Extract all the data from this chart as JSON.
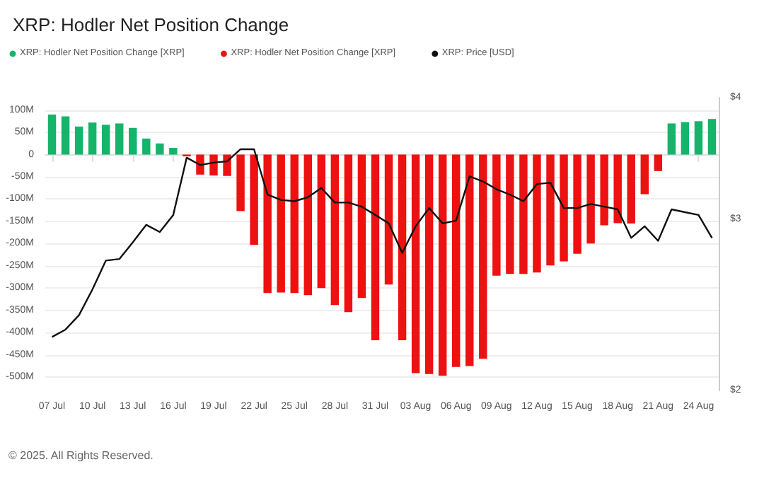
{
  "chart_data": {
    "type": "bar",
    "title": "XRP: Hodler Net Position Change",
    "categories": [
      "07 Jul",
      null,
      null,
      "10 Jul",
      null,
      null,
      "13 Jul",
      null,
      null,
      "16 Jul",
      null,
      null,
      "19 Jul",
      null,
      null,
      "22 Jul",
      null,
      null,
      "25 Jul",
      null,
      null,
      "28 Jul",
      null,
      null,
      "31 Jul",
      null,
      null,
      "03 Aug",
      null,
      null,
      "06 Aug",
      null,
      null,
      "09 Aug",
      null,
      null,
      "12 Aug",
      null,
      null,
      "15 Aug",
      null,
      null,
      "18 Aug",
      null,
      null,
      "21 Aug",
      null,
      null,
      "24 Aug",
      null
    ],
    "series": [
      {
        "name": "XRP: Hodler Net Position Change [XRP]",
        "color": "#16b36a",
        "values": [
          90,
          86,
          63,
          72,
          67,
          70,
          60,
          36,
          25,
          15,
          null,
          null,
          null,
          null,
          null,
          null,
          null,
          null,
          null,
          null,
          null,
          null,
          null,
          null,
          null,
          null,
          null,
          null,
          null,
          null,
          null,
          null,
          null,
          null,
          null,
          null,
          null,
          null,
          null,
          null,
          null,
          null,
          null,
          null,
          null,
          null,
          70,
          73,
          75,
          80
        ]
      },
      {
        "name": "XRP: Hodler Net Position Change [XRP]",
        "color": "#ee1111",
        "values": [
          null,
          null,
          null,
          null,
          null,
          null,
          null,
          null,
          null,
          null,
          -4,
          -45,
          -47,
          -48,
          -127,
          -203,
          -311,
          -310,
          -311,
          -316,
          -300,
          -338,
          -354,
          -322,
          -417,
          -292,
          -417,
          -491,
          -493,
          -497,
          -477,
          -475,
          -459,
          -272,
          -268,
          -268,
          -265,
          -249,
          -240,
          -223,
          -200,
          -159,
          -154,
          -155,
          -89,
          -37,
          null,
          null,
          null,
          null
        ]
      },
      {
        "name": "XRP: Price [USD]",
        "type": "line",
        "axis": "y2",
        "color": "#111111",
        "values": [
          2.27,
          2.31,
          2.39,
          2.54,
          2.72,
          2.73,
          2.84,
          2.96,
          2.91,
          3.03,
          3.47,
          3.41,
          3.43,
          3.44,
          3.54,
          3.54,
          3.18,
          3.14,
          3.13,
          3.16,
          3.23,
          3.12,
          3.12,
          3.09,
          3.03,
          2.97,
          2.77,
          2.95,
          3.08,
          2.97,
          2.99,
          3.32,
          3.28,
          3.22,
          3.18,
          3.13,
          3.26,
          3.27,
          3.08,
          3.08,
          3.11,
          3.09,
          3.07,
          2.87,
          2.95,
          2.85,
          3.07,
          3.05,
          3.03,
          2.87
        ]
      }
    ],
    "ylim": [
      -530,
      128
    ],
    "yticks": [
      {
        "value": 100,
        "label": "100M"
      },
      {
        "value": 50,
        "label": "50M"
      },
      0,
      {
        "value": -50,
        "label": "-50M"
      },
      {
        "value": -100,
        "label": "-100M"
      },
      {
        "value": -150,
        "label": "-150M"
      },
      {
        "value": -200,
        "label": "-200M"
      },
      {
        "value": -250,
        "label": "-250M"
      },
      {
        "value": -300,
        "label": "-300M"
      },
      {
        "value": -350,
        "label": "-350M"
      },
      {
        "value": -400,
        "label": "-400M"
      },
      {
        "value": -450,
        "label": "-450M"
      },
      {
        "value": -500,
        "label": "-500M"
      }
    ],
    "y2lim": [
      2,
      4
    ],
    "y2ticks": [
      {
        "value": 2,
        "label": "$2"
      },
      {
        "value": 3,
        "label": "$3"
      },
      {
        "value": 4,
        "label": "$4"
      }
    ],
    "log": "y2",
    "grid": "y",
    "legend": "top left",
    "marker": "none",
    "line_style": "solid",
    "annotations": [
      "© 2025. All Rights Reserved."
    ]
  }
}
